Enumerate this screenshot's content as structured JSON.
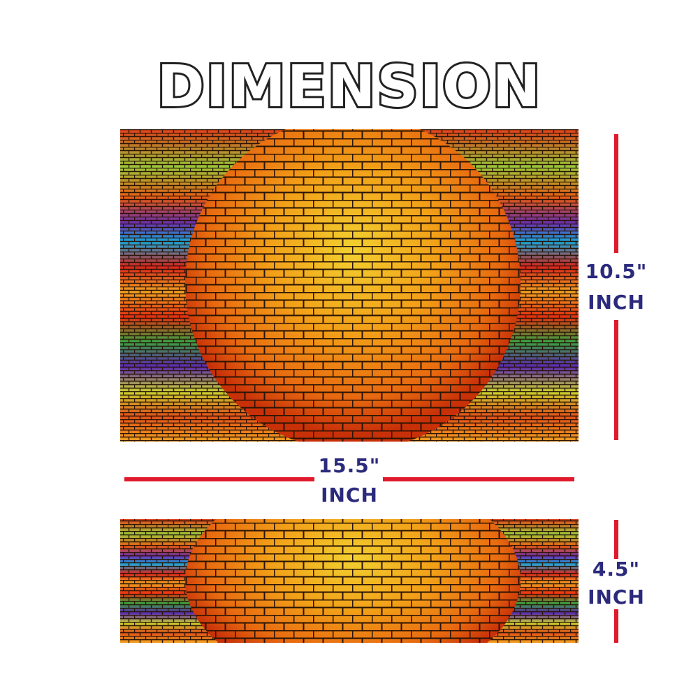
{
  "title": "DIMENSION",
  "dimensions": [
    {
      "value": "10.5\"",
      "unit": "INCH"
    },
    {
      "value": "15.5\"",
      "unit": "INCH"
    },
    {
      "value": "4.5\"",
      "unit": "INCH"
    }
  ]
}
